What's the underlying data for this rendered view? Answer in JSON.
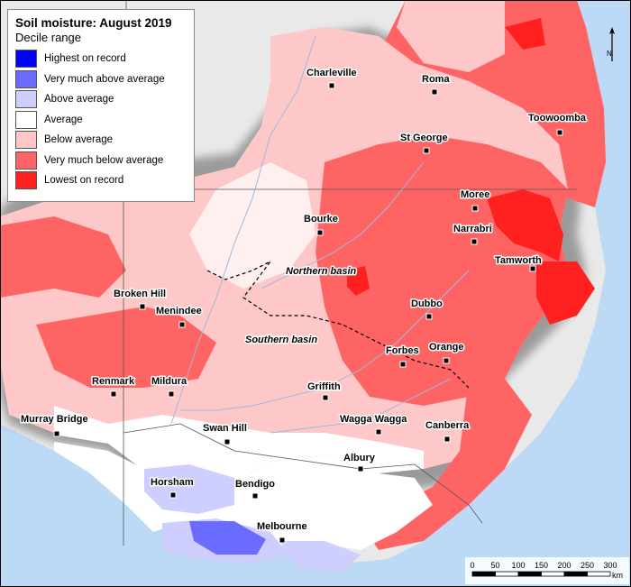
{
  "map": {
    "legend": {
      "title": "Soil moisture: August 2019",
      "subtitle": "Decile range",
      "items": [
        {
          "label": "Highest on record",
          "color": "#0000ff"
        },
        {
          "label": "Very much above average",
          "color": "#6b6bff"
        },
        {
          "label": "Above average",
          "color": "#cfcfff"
        },
        {
          "label": "Average",
          "color": "#ffffff"
        },
        {
          "label": "Below average",
          "color": "#ffc8c8"
        },
        {
          "label": "Very much below average",
          "color": "#ff6464"
        },
        {
          "label": "Lowest on record",
          "color": "#ff2020"
        }
      ]
    },
    "towns": {
      "charleville": "Charleville",
      "roma": "Roma",
      "toowoomba": "Toowoomba",
      "st_george": "St George",
      "moree": "Moree",
      "bourke": "Bourke",
      "narrabri": "Narrabri",
      "tamworth": "Tamworth",
      "broken_hill": "Broken Hill",
      "menindee": "Menindee",
      "dubbo": "Dubbo",
      "forbes": "Forbes",
      "orange": "Orange",
      "renmark": "Renmark",
      "mildura": "Mildura",
      "griffith": "Griffith",
      "murray_bridge": "Murray Bridge",
      "wagga_wagga": "Wagga Wagga",
      "canberra": "Canberra",
      "swan_hill": "Swan Hill",
      "albury": "Albury",
      "horsham": "Horsham",
      "bendigo": "Bendigo",
      "melbourne": "Melbourne"
    },
    "basins": {
      "northern": "Northern basin",
      "southern": "Southern basin"
    },
    "scale": {
      "ticks": [
        "0",
        "50",
        "100",
        "150",
        "200",
        "250",
        "300"
      ],
      "unit": "km"
    },
    "north_label": "N",
    "colors": {
      "ocean": "#bcd9f5",
      "outside_land": "#e6e6e6"
    }
  }
}
